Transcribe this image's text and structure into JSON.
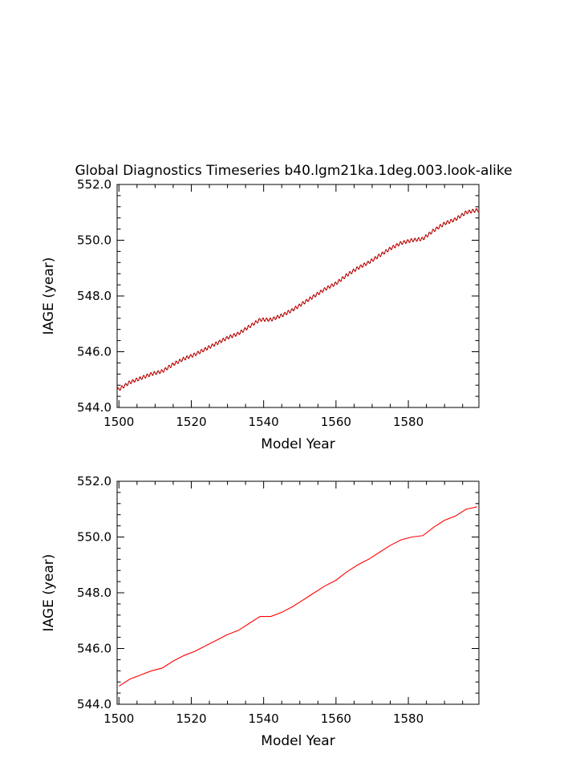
{
  "title": "Global Diagnostics Timeseries b40.lgm21ka.1deg.003.look-alike",
  "chart_data": [
    {
      "type": "line",
      "title": "Global Diagnostics Timeseries b40.lgm21ka.1deg.003.look-alike",
      "xlabel": "Model Year",
      "ylabel": "IAGE (year)",
      "xlim": [
        1499.5,
        1599.5
      ],
      "ylim": [
        544.0,
        552.0
      ],
      "xticks": [
        "1500",
        "1520",
        "1540",
        "1560",
        "1580"
      ],
      "yticks": [
        "544.0",
        "546.0",
        "548.0",
        "550.0",
        "552.0"
      ],
      "grid": false,
      "legend": "none",
      "series": [
        {
          "color": "#ff0000",
          "style": "monthly",
          "seasonal_amplitude": 0.06
        },
        {
          "color": "#000000",
          "style": "monthly-dash",
          "seasonal_amplitude": 0.06
        }
      ],
      "x": [
        1500,
        1503,
        1506,
        1509,
        1512,
        1515,
        1518,
        1521,
        1524,
        1527,
        1530,
        1533,
        1536,
        1539,
        1542,
        1545,
        1548,
        1551,
        1554,
        1557,
        1560,
        1563,
        1566,
        1569,
        1572,
        1575,
        1578,
        1581,
        1584,
        1587,
        1590,
        1593,
        1596,
        1599
      ],
      "y": [
        544.65,
        544.9,
        545.05,
        545.2,
        545.3,
        545.55,
        545.75,
        545.9,
        546.1,
        546.3,
        546.5,
        546.65,
        546.9,
        547.15,
        547.15,
        547.3,
        547.5,
        547.75,
        548.0,
        548.25,
        548.45,
        548.75,
        549.0,
        549.2,
        549.45,
        549.7,
        549.9,
        550.0,
        550.05,
        550.35,
        550.6,
        550.75,
        551.0,
        551.08
      ]
    },
    {
      "type": "line",
      "xlabel": "Model Year",
      "ylabel": "IAGE (year)",
      "xlim": [
        1499.5,
        1599.5
      ],
      "ylim": [
        544.0,
        552.0
      ],
      "xticks": [
        "1500",
        "1520",
        "1540",
        "1560",
        "1580"
      ],
      "yticks": [
        "544.0",
        "546.0",
        "548.0",
        "550.0",
        "552.0"
      ],
      "grid": false,
      "legend": "none",
      "series": [
        {
          "color": "#ff0000",
          "style": "annual"
        }
      ],
      "x": [
        1500,
        1503,
        1506,
        1509,
        1512,
        1515,
        1518,
        1521,
        1524,
        1527,
        1530,
        1533,
        1536,
        1539,
        1542,
        1545,
        1548,
        1551,
        1554,
        1557,
        1560,
        1563,
        1566,
        1569,
        1572,
        1575,
        1578,
        1581,
        1584,
        1587,
        1590,
        1593,
        1596,
        1599
      ],
      "y": [
        544.65,
        544.9,
        545.05,
        545.2,
        545.3,
        545.55,
        545.75,
        545.9,
        546.1,
        546.3,
        546.5,
        546.65,
        546.9,
        547.15,
        547.15,
        547.3,
        547.5,
        547.75,
        548.0,
        548.25,
        548.45,
        548.75,
        549.0,
        549.2,
        549.45,
        549.7,
        549.9,
        550.0,
        550.05,
        550.35,
        550.6,
        550.75,
        551.0,
        551.08
      ]
    }
  ]
}
